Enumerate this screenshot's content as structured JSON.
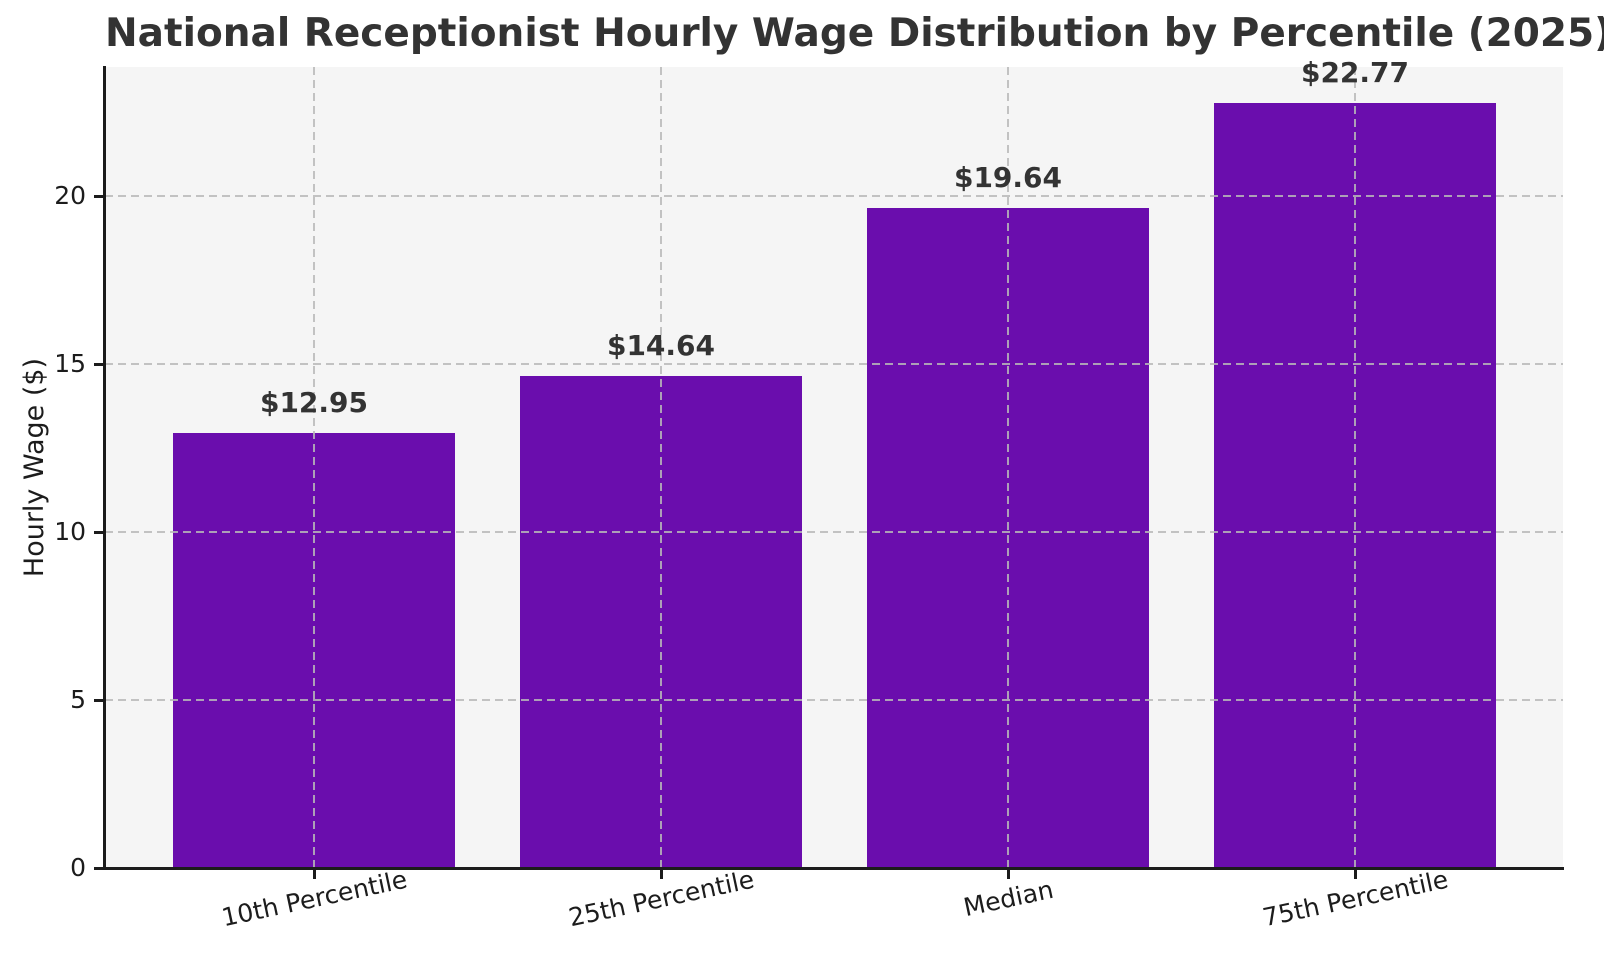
{
  "chart_data": {
    "type": "bar",
    "title": "National Receptionist Hourly Wage Distribution by Percentile (2025)",
    "xlabel": "",
    "ylabel": "Hourly Wage ($)",
    "categories": [
      "10th Percentile",
      "25th Percentile",
      "Median",
      "75th Percentile"
    ],
    "values": [
      12.95,
      14.64,
      19.64,
      22.77
    ],
    "value_labels": [
      "$12.95",
      "$14.64",
      "$19.64",
      "$22.77"
    ],
    "yticks": [
      0,
      5,
      10,
      15,
      20
    ],
    "ytick_labels": [
      "0",
      "5",
      "10",
      "15",
      "20"
    ],
    "ylim": [
      0,
      23.8
    ],
    "grid": "on",
    "grid_style": "dashed, horizontal at yticks and vertical at bar centers, drawn above bars",
    "legend": "none",
    "x_tick_rotation_deg": 12,
    "colors": {
      "bar": "#6A0DAD",
      "plot_background": "#f5f5f5",
      "figure_background": "#ffffff",
      "grid": "#c9c9c9",
      "axis_and_ticks": "#1c1c1c",
      "title_text": "#333333",
      "value_label_text": "#333333"
    }
  }
}
